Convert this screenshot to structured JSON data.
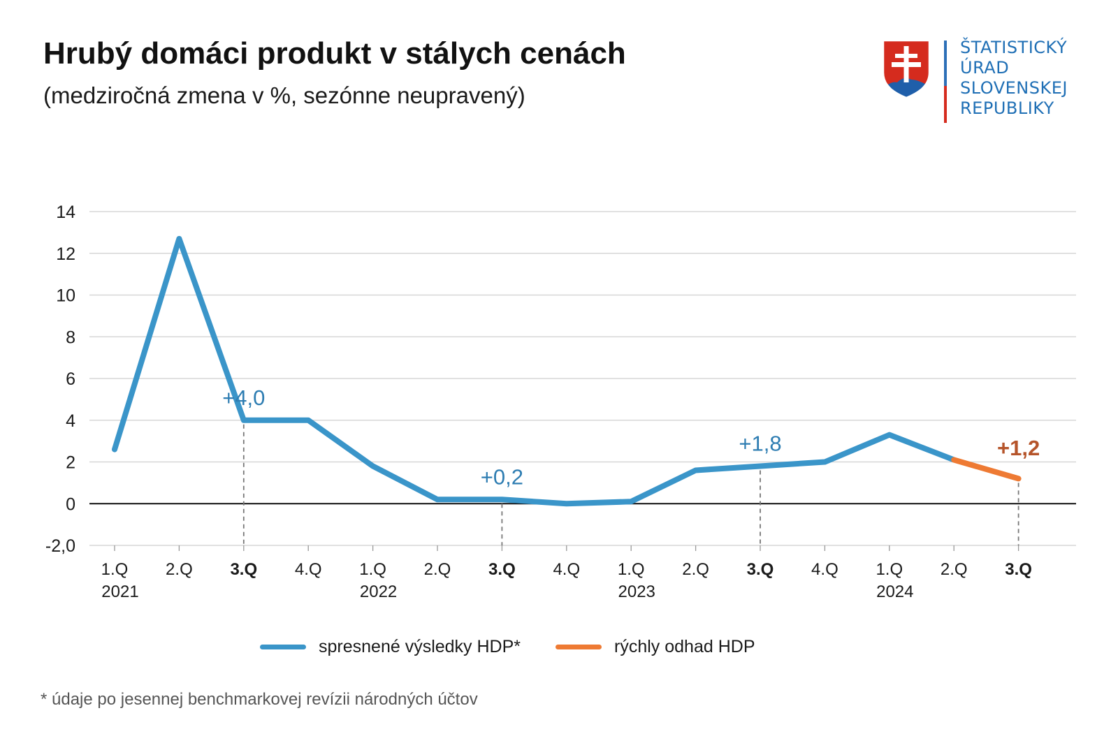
{
  "header": {
    "title": "Hrubý domáci produkt v stálych cenách",
    "subtitle": "(medziročná zmena v %, sezónne neupravený)"
  },
  "logo": {
    "lines": [
      "ŠTATISTICKÝ",
      "ÚRAD",
      "SLOVENSKEJ",
      "REPUBLIKY"
    ],
    "icon": "slovak-coat-of-arms-icon"
  },
  "colors": {
    "blue": "#3a95c9",
    "orange": "#ee7a33",
    "label_blue": "#2e7db2",
    "label_orange": "#b5542a",
    "grid": "#cfcfcf",
    "zero_line": "#111111"
  },
  "chart_data": {
    "type": "line",
    "title": "Hrubý domáci produkt v stálych cenách",
    "subtitle": "(medziročná zmena v %, sezónne neupravený)",
    "categories": [
      "1.Q",
      "2.Q",
      "3.Q",
      "4.Q",
      "1.Q",
      "2.Q",
      "3.Q",
      "4.Q",
      "1.Q",
      "2.Q",
      "3.Q",
      "4.Q",
      "1.Q",
      "2.Q",
      "3.Q"
    ],
    "bold_categories": [
      2,
      6,
      10,
      14
    ],
    "years": [
      {
        "label": "2021",
        "index": 0
      },
      {
        "label": "2022",
        "index": 4
      },
      {
        "label": "2023",
        "index": 8
      },
      {
        "label": "2024",
        "index": 12
      }
    ],
    "ylim": [
      -2,
      14
    ],
    "yticks": [
      {
        "value": 14,
        "label": "14"
      },
      {
        "value": 12,
        "label": "12"
      },
      {
        "value": 10,
        "label": "10"
      },
      {
        "value": 8,
        "label": "8"
      },
      {
        "value": 6,
        "label": "6"
      },
      {
        "value": 4,
        "label": "4"
      },
      {
        "value": 2,
        "label": "2"
      },
      {
        "value": 0,
        "label": "0"
      },
      {
        "value": -2,
        "label": "-2,0"
      }
    ],
    "grid": true,
    "series": [
      {
        "name": "spresnené výsledky HDP*",
        "color": "#3a95c9",
        "values": [
          2.6,
          12.7,
          4.0,
          4.0,
          1.8,
          0.2,
          0.2,
          0.0,
          0.1,
          1.6,
          1.8,
          2.0,
          3.3,
          2.1,
          null
        ]
      },
      {
        "name": "rýchly odhad HDP",
        "color": "#ee7a33",
        "values": [
          null,
          null,
          null,
          null,
          null,
          null,
          null,
          null,
          null,
          null,
          null,
          null,
          null,
          2.1,
          1.2
        ]
      }
    ],
    "annotations": [
      {
        "index": 2,
        "value": 4.0,
        "text": "+4,0",
        "color": "#2e7db2",
        "bold": false
      },
      {
        "index": 6,
        "value": 0.2,
        "text": "+0,2",
        "color": "#2e7db2",
        "bold": false
      },
      {
        "index": 10,
        "value": 1.8,
        "text": "+1,8",
        "color": "#2e7db2",
        "bold": false
      },
      {
        "index": 14,
        "value": 1.2,
        "text": "+1,2",
        "color": "#b5542a",
        "bold": true
      }
    ],
    "dashed_markers": [
      2,
      6,
      10,
      14
    ],
    "legend_position": "bottom"
  },
  "legend": {
    "items": [
      {
        "label": "spresnené výsledky HDP*",
        "color": "#3a95c9"
      },
      {
        "label": "rýchly odhad HDP",
        "color": "#ee7a33"
      }
    ]
  },
  "footnote": "* údaje po jesennej benchmarkovej revízii národných účtov"
}
